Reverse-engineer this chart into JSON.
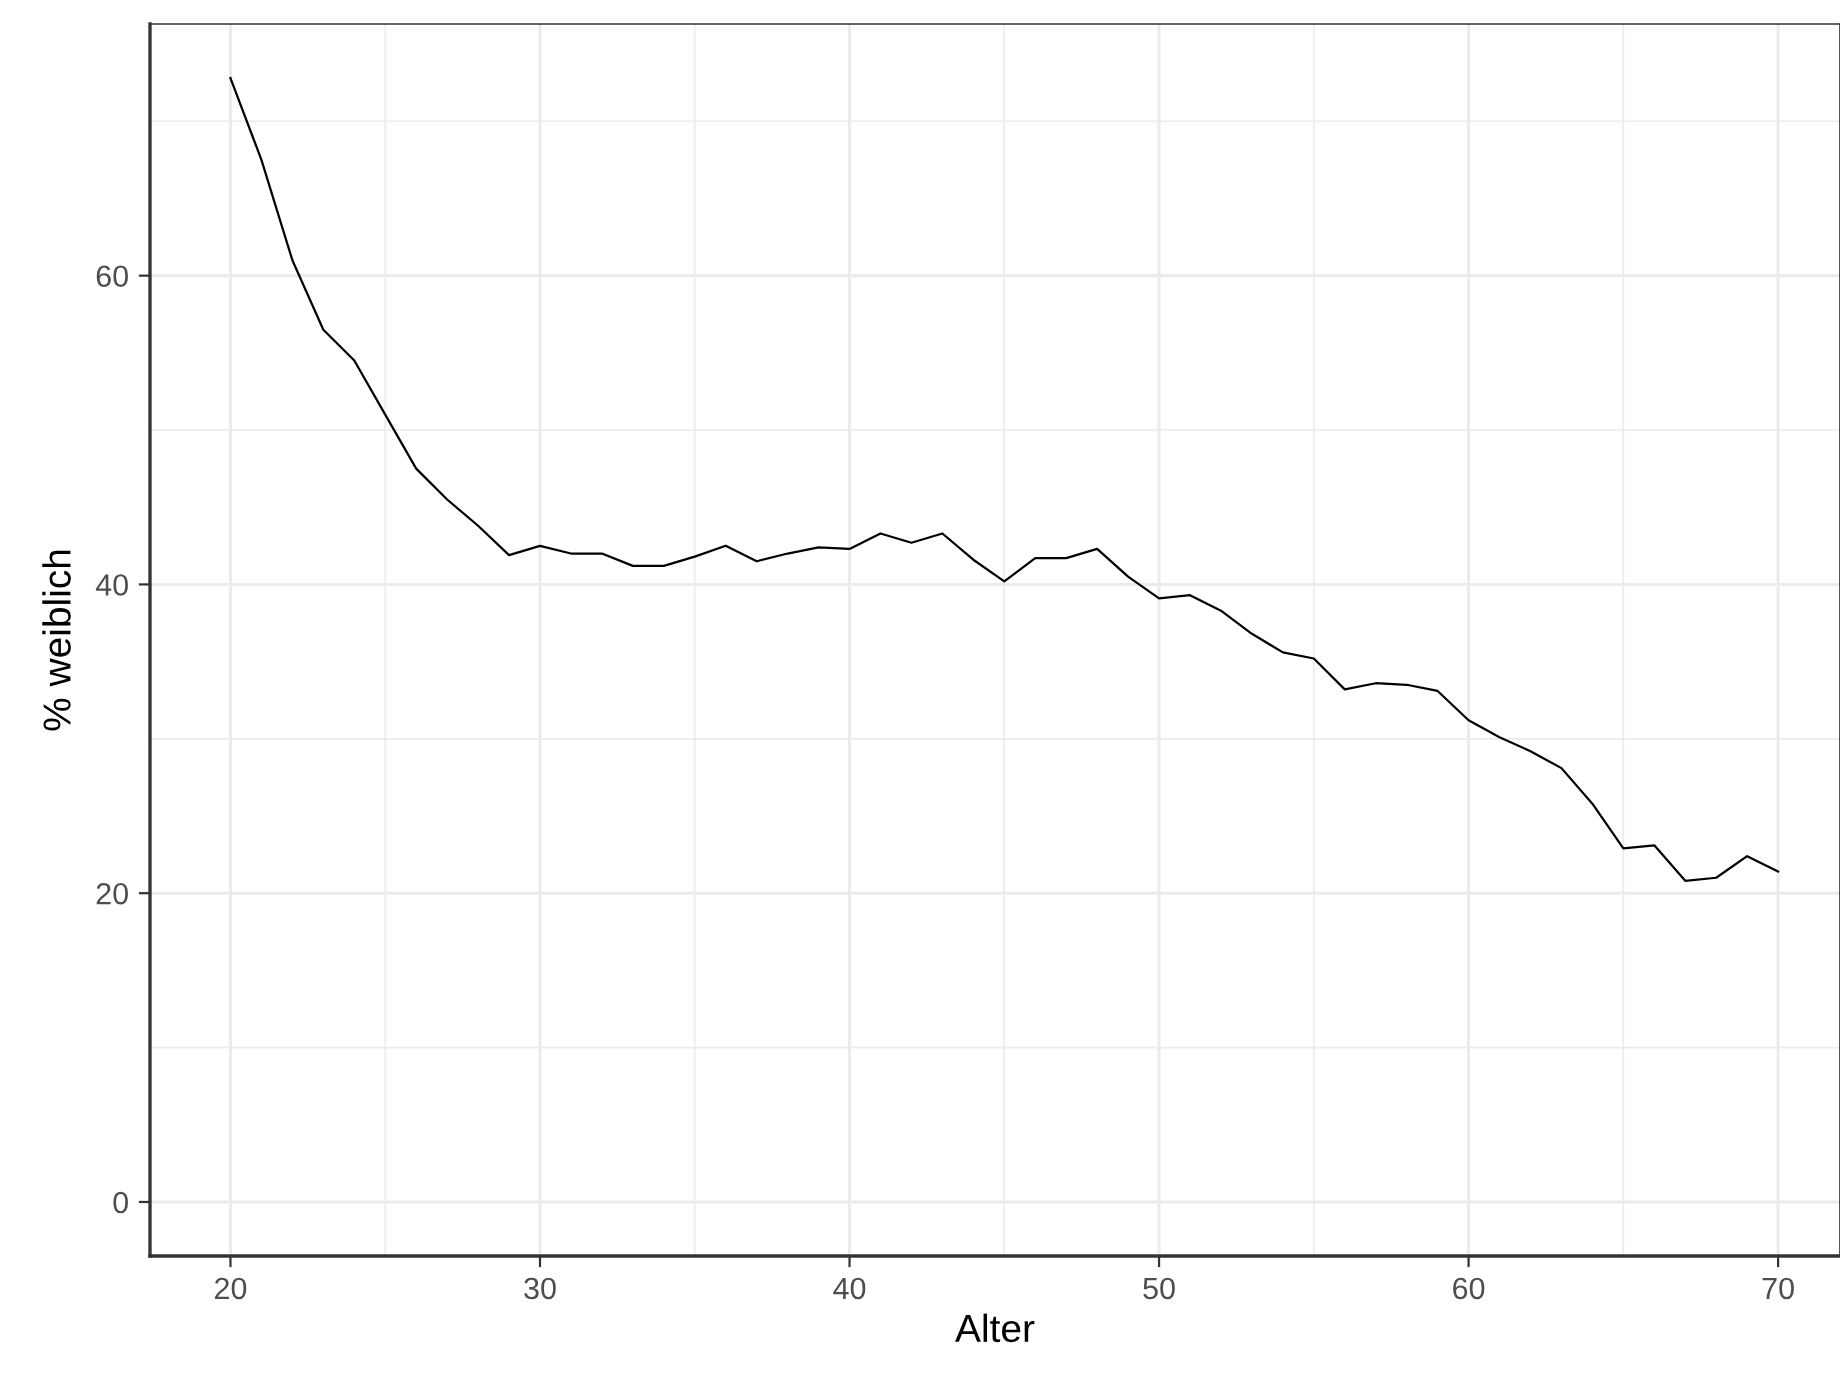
{
  "chart_data": {
    "type": "line",
    "xlabel": "Alter",
    "ylabel": "% weiblich",
    "x": [
      20,
      21,
      22,
      23,
      24,
      25,
      26,
      27,
      28,
      29,
      30,
      31,
      32,
      33,
      34,
      35,
      36,
      37,
      38,
      39,
      40,
      41,
      42,
      43,
      44,
      45,
      46,
      47,
      48,
      49,
      50,
      51,
      52,
      53,
      54,
      55,
      56,
      57,
      58,
      59,
      60,
      61,
      62,
      63,
      64,
      65,
      66,
      67,
      68,
      69,
      70
    ],
    "series": [
      {
        "color": "#000000",
        "values": [
          72.8,
          67.5,
          61,
          56.5,
          54.5,
          51,
          47.5,
          45.5,
          43.8,
          41.9,
          42.5,
          42,
          42,
          41.2,
          41.2,
          41.8,
          42.5,
          41.5,
          42,
          42.4,
          42.3,
          43.3,
          42.7,
          43.3,
          41.6,
          40.2,
          41.7,
          41.7,
          42.3,
          40.5,
          39.1,
          39.3,
          38.3,
          36.8,
          35.6,
          35.2,
          33.2,
          33.6,
          33.5,
          33.1,
          31.2,
          30.1,
          29.2,
          28.1,
          25.8,
          22.9,
          23.1,
          20.8,
          21,
          22.4,
          21.4
        ]
      }
    ],
    "xlim": [
      17.4,
      72
    ],
    "ylim": [
      -3.5,
      76.3
    ],
    "xticks": [
      20,
      30,
      40,
      50,
      60,
      70
    ],
    "yticks": [
      0,
      20,
      40,
      60
    ],
    "grid": true,
    "line_style": "solid"
  }
}
